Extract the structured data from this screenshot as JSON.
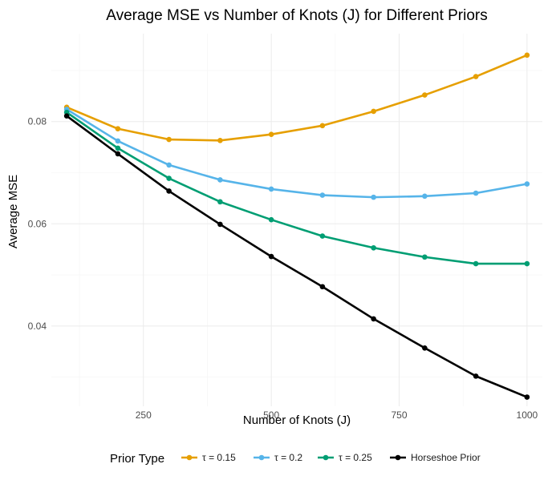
{
  "chart_data": {
    "type": "line",
    "title": "Average MSE vs Number of Knots (J) for Different Priors",
    "xlabel": "Number of Knots (J)",
    "ylabel": "Average MSE",
    "x": [
      100,
      200,
      300,
      400,
      500,
      600,
      700,
      800,
      900,
      1000
    ],
    "xlim": [
      70,
      1030
    ],
    "ylim": [
      0.0243,
      0.0972
    ],
    "x_ticks": [
      250,
      500,
      750,
      1000
    ],
    "x_tick_labels": [
      "250",
      "500",
      "750",
      "1000"
    ],
    "y_ticks": [
      0.04,
      0.06,
      0.08
    ],
    "y_tick_labels": [
      "0.04",
      "0.06",
      "0.08"
    ],
    "grid": true,
    "legend": {
      "title": "Prior Type",
      "position": "bottom"
    },
    "series": [
      {
        "name": "τ = 0.15",
        "color": "#E69F00",
        "values": [
          0.0828,
          0.0786,
          0.0765,
          0.0763,
          0.0775,
          0.0792,
          0.082,
          0.0852,
          0.0888,
          0.093
        ]
      },
      {
        "name": "τ = 0.2",
        "color": "#56B4E9",
        "values": [
          0.0824,
          0.0762,
          0.0715,
          0.0686,
          0.0668,
          0.0656,
          0.0652,
          0.0654,
          0.066,
          0.0678
        ]
      },
      {
        "name": "τ = 0.25",
        "color": "#009E73",
        "values": [
          0.0818,
          0.0748,
          0.0689,
          0.0643,
          0.0608,
          0.0576,
          0.0553,
          0.0535,
          0.0522,
          0.0522
        ]
      },
      {
        "name": "Horseshoe Prior",
        "color": "#000000",
        "values": [
          0.0811,
          0.0737,
          0.0664,
          0.0599,
          0.0536,
          0.0477,
          0.0414,
          0.0357,
          0.0302,
          0.0261
        ]
      }
    ]
  }
}
